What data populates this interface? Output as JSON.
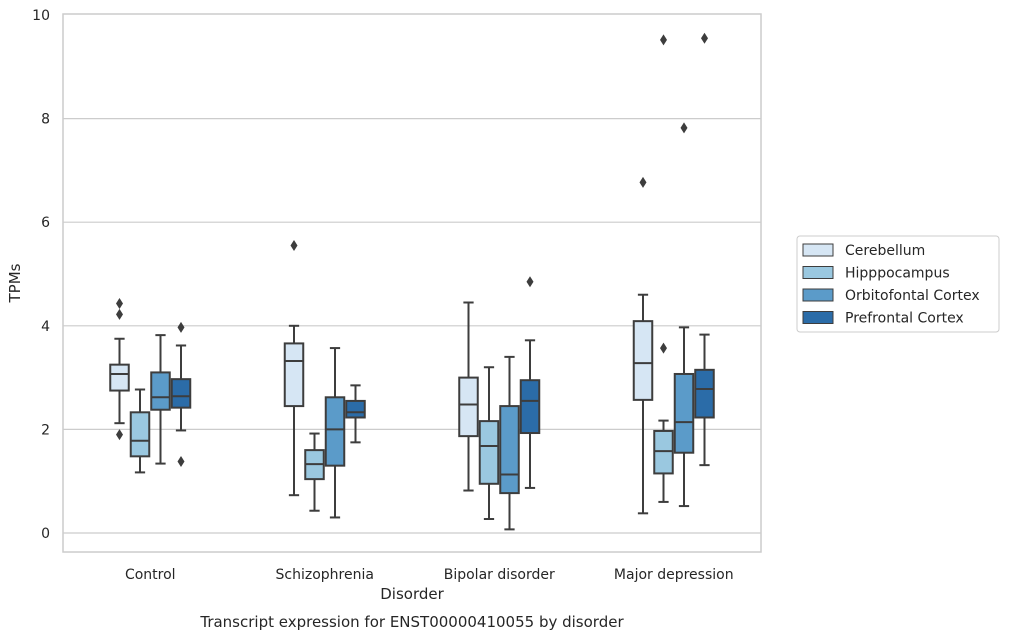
{
  "chart_data": {
    "type": "box",
    "caption": "Transcript expression for ENST00000410055 by disorder",
    "xlabel": "Disorder",
    "ylabel": "TPMs",
    "ylim": [
      -0.4,
      10
    ],
    "yticks": [
      "0",
      "2",
      "4",
      "6",
      "8",
      "10"
    ],
    "grid": "horizontal",
    "legend_position": "right",
    "categories": [
      "Control",
      "Schizophrenia",
      "Bipolar disorder",
      "Major depression"
    ],
    "series": [
      {
        "name": "Cerebellum",
        "color": "#d6e6f4",
        "boxes": [
          {
            "whisker_low": 2.12,
            "q1": 2.75,
            "median": 3.07,
            "q3": 3.25,
            "whisker_high": 3.75,
            "outliers": [
              1.9,
              4.22,
              4.43
            ]
          },
          {
            "whisker_low": 0.73,
            "q1": 2.45,
            "median": 3.32,
            "q3": 3.66,
            "whisker_high": 4.0,
            "outliers": [
              5.55
            ]
          },
          {
            "whisker_low": 0.82,
            "q1": 1.87,
            "median": 2.48,
            "q3": 3.0,
            "whisker_high": 4.45,
            "outliers": []
          },
          {
            "whisker_low": 0.38,
            "q1": 2.57,
            "median": 3.28,
            "q3": 4.09,
            "whisker_high": 4.6,
            "outliers": [
              6.77
            ]
          }
        ]
      },
      {
        "name": "Hipppocampus",
        "color": "#9ac8e0",
        "boxes": [
          {
            "whisker_low": 1.17,
            "q1": 1.48,
            "median": 1.78,
            "q3": 2.33,
            "whisker_high": 2.77,
            "outliers": []
          },
          {
            "whisker_low": 0.43,
            "q1": 1.04,
            "median": 1.33,
            "q3": 1.6,
            "whisker_high": 1.92,
            "outliers": []
          },
          {
            "whisker_low": 0.27,
            "q1": 0.95,
            "median": 1.68,
            "q3": 2.16,
            "whisker_high": 3.2,
            "outliers": []
          },
          {
            "whisker_low": 0.6,
            "q1": 1.15,
            "median": 1.58,
            "q3": 1.97,
            "whisker_high": 2.17,
            "outliers": [
              3.57,
              9.52
            ]
          }
        ]
      },
      {
        "name": "Orbitofontal Cortex",
        "color": "#5b9bc9",
        "boxes": [
          {
            "whisker_low": 1.34,
            "q1": 2.38,
            "median": 2.62,
            "q3": 3.1,
            "whisker_high": 3.82,
            "outliers": []
          },
          {
            "whisker_low": 0.3,
            "q1": 1.3,
            "median": 2.0,
            "q3": 2.62,
            "whisker_high": 3.57,
            "outliers": []
          },
          {
            "whisker_low": 0.07,
            "q1": 0.77,
            "median": 1.13,
            "q3": 2.45,
            "whisker_high": 3.4,
            "outliers": []
          },
          {
            "whisker_low": 0.52,
            "q1": 1.55,
            "median": 2.14,
            "q3": 3.07,
            "whisker_high": 3.97,
            "outliers": [
              7.82
            ]
          }
        ]
      },
      {
        "name": "Prefrontal Cortex",
        "color": "#2b6ca8",
        "boxes": [
          {
            "whisker_low": 1.98,
            "q1": 2.42,
            "median": 2.64,
            "q3": 2.97,
            "whisker_high": 3.62,
            "outliers": [
              1.38,
              3.97
            ]
          },
          {
            "whisker_low": 1.75,
            "q1": 2.23,
            "median": 2.33,
            "q3": 2.55,
            "whisker_high": 2.85,
            "outliers": []
          },
          {
            "whisker_low": 0.87,
            "q1": 1.93,
            "median": 2.55,
            "q3": 2.95,
            "whisker_high": 3.72,
            "outliers": [
              4.85
            ]
          },
          {
            "whisker_low": 1.31,
            "q1": 2.23,
            "median": 2.78,
            "q3": 3.15,
            "whisker_high": 3.83,
            "outliers": [
              9.55
            ]
          }
        ]
      }
    ]
  }
}
